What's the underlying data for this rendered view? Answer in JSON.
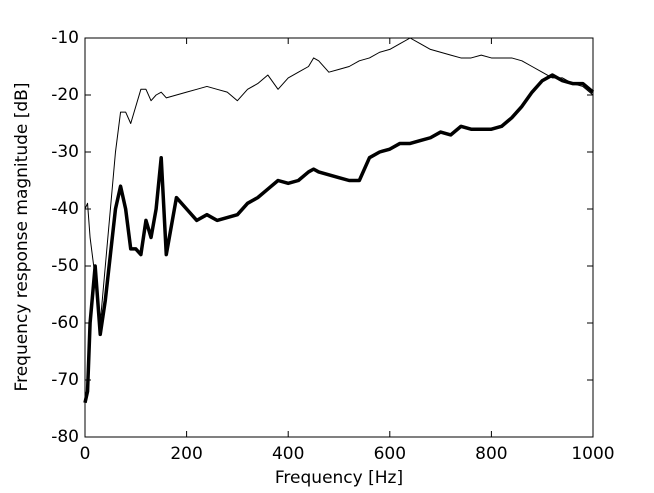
{
  "chart_data": {
    "type": "line",
    "xlabel": "Frequency [Hz]",
    "ylabel": "Frequency response magnitude [dB]",
    "x": [
      0,
      5,
      10,
      20,
      30,
      40,
      50,
      60,
      70,
      80,
      90,
      100,
      110,
      120,
      130,
      140,
      150,
      160,
      180,
      200,
      220,
      240,
      260,
      280,
      300,
      320,
      340,
      360,
      380,
      400,
      420,
      440,
      450,
      460,
      480,
      500,
      520,
      540,
      560,
      580,
      600,
      620,
      640,
      660,
      680,
      700,
      720,
      740,
      760,
      780,
      800,
      820,
      840,
      860,
      880,
      900,
      920,
      940,
      960,
      980,
      1000
    ],
    "series": [
      {
        "color": "#000000",
        "width": 1,
        "values": [
          -40,
          -39,
          -45,
          -52,
          -60,
          -50,
          -40,
          -30,
          -23,
          -23,
          -25,
          -22,
          -19,
          -19,
          -21,
          -20,
          -19.5,
          -20.5,
          -20,
          -19.5,
          -19,
          -18.5,
          -19,
          -19.5,
          -21,
          -19,
          -18,
          -16.5,
          -19,
          -17,
          -16,
          -15,
          -13.5,
          -14,
          -16,
          -15.5,
          -15,
          -14,
          -13.5,
          -12.5,
          -12,
          -11,
          -10,
          -11,
          -12,
          -12.5,
          -13,
          -13.5,
          -13.5,
          -13,
          -13.5,
          -13.5,
          -13.5,
          -14,
          -15,
          -16,
          -17,
          -17,
          -18,
          -18.5,
          -20
        ]
      },
      {
        "color": "#000000",
        "width": 3.5,
        "values": [
          -74,
          -72,
          -60,
          -50,
          -62,
          -56,
          -48,
          -40,
          -36,
          -40,
          -47,
          -47,
          -48,
          -42,
          -45,
          -40,
          -31,
          -48,
          -38,
          -40,
          -42,
          -41,
          -42,
          -41.5,
          -41,
          -39,
          -38,
          -36.5,
          -35,
          -35.5,
          -35,
          -33.5,
          -33,
          -33.5,
          -34,
          -34.5,
          -35,
          -35,
          -31,
          -30,
          -29.5,
          -28.5,
          -28.5,
          -28,
          -27.5,
          -26.5,
          -27,
          -25.5,
          -26,
          -26,
          -26,
          -25.5,
          -24,
          -22,
          -19.5,
          -17.5,
          -16.5,
          -17.5,
          -18,
          -18,
          -19.5
        ]
      }
    ],
    "xlim": [
      0,
      1000
    ],
    "xticks": [
      0,
      200,
      400,
      600,
      800,
      1000
    ],
    "ylim": [
      -80,
      -10
    ],
    "yticks": [
      -80,
      -70,
      -60,
      -50,
      -40,
      -30,
      -20,
      -10
    ],
    "grid": false
  }
}
